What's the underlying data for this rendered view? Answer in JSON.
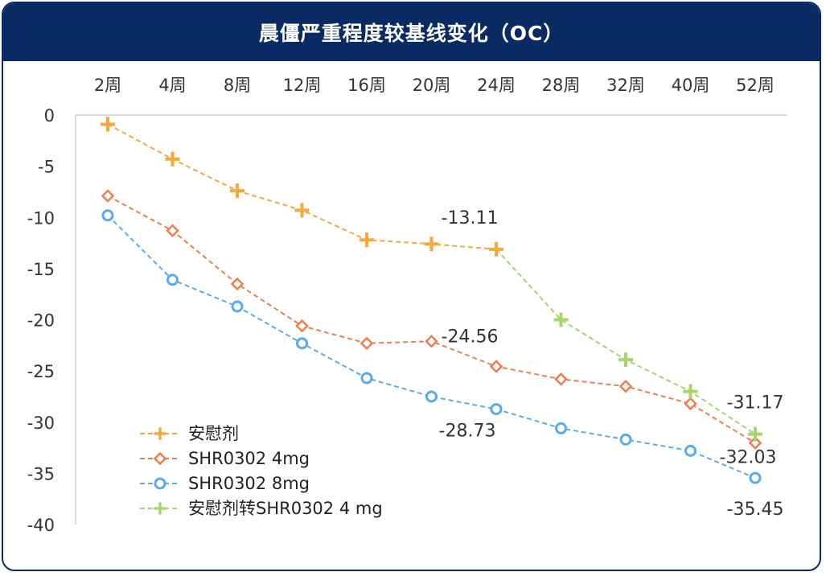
{
  "chart_data": {
    "type": "line",
    "title": "晨僵严重程度较基线变化（OC）",
    "categories": [
      "2周",
      "4周",
      "8周",
      "12周",
      "16周",
      "20周",
      "24周",
      "28周",
      "32周",
      "40周",
      "52周"
    ],
    "ylim": [
      -40,
      0
    ],
    "yticks": [
      "0",
      "-5",
      "-10",
      "-15",
      "-20",
      "-25",
      "-30",
      "-35",
      "-40"
    ],
    "grid": false,
    "legend_position": "bottom-left",
    "series": [
      {
        "name": "安慰剂",
        "color": "#f5a93a",
        "marker": "plus",
        "values": [
          -0.9,
          -4.3,
          -7.4,
          -9.3,
          -12.2,
          -12.6,
          -13.11,
          null,
          null,
          null,
          null
        ]
      },
      {
        "name": "SHR0302 4mg",
        "color": "#ef7d4e",
        "marker": "diamond",
        "values": [
          -7.9,
          -11.3,
          -16.5,
          -20.6,
          -22.3,
          -22.1,
          -24.56,
          -25.8,
          -26.5,
          -28.2,
          -32.03
        ]
      },
      {
        "name": "SHR0302 8mg",
        "color": "#5aace8",
        "marker": "circle",
        "values": [
          -9.8,
          -16.1,
          -18.7,
          -22.3,
          -25.7,
          -27.5,
          -28.73,
          -30.6,
          -31.7,
          -32.8,
          -35.45
        ]
      },
      {
        "name": "安慰剂转SHR0302 4 mg",
        "color": "#a6d46f",
        "marker": "plus",
        "values": [
          null,
          null,
          null,
          null,
          null,
          null,
          -13.11,
          -20.0,
          -23.9,
          -27.0,
          -31.17
        ]
      }
    ],
    "annotations": [
      {
        "text": "-13.11",
        "x": "24周",
        "y": -13.11
      },
      {
        "text": "-24.56",
        "x": "24周",
        "y": -24.56
      },
      {
        "text": "-28.73",
        "x": "24周",
        "y": -28.73
      },
      {
        "text": "-31.17",
        "x": "52周",
        "y": -31.17
      },
      {
        "text": "-32.03",
        "x": "52周",
        "y": -32.03
      },
      {
        "text": "-35.45",
        "x": "52周",
        "y": -35.45
      }
    ]
  }
}
